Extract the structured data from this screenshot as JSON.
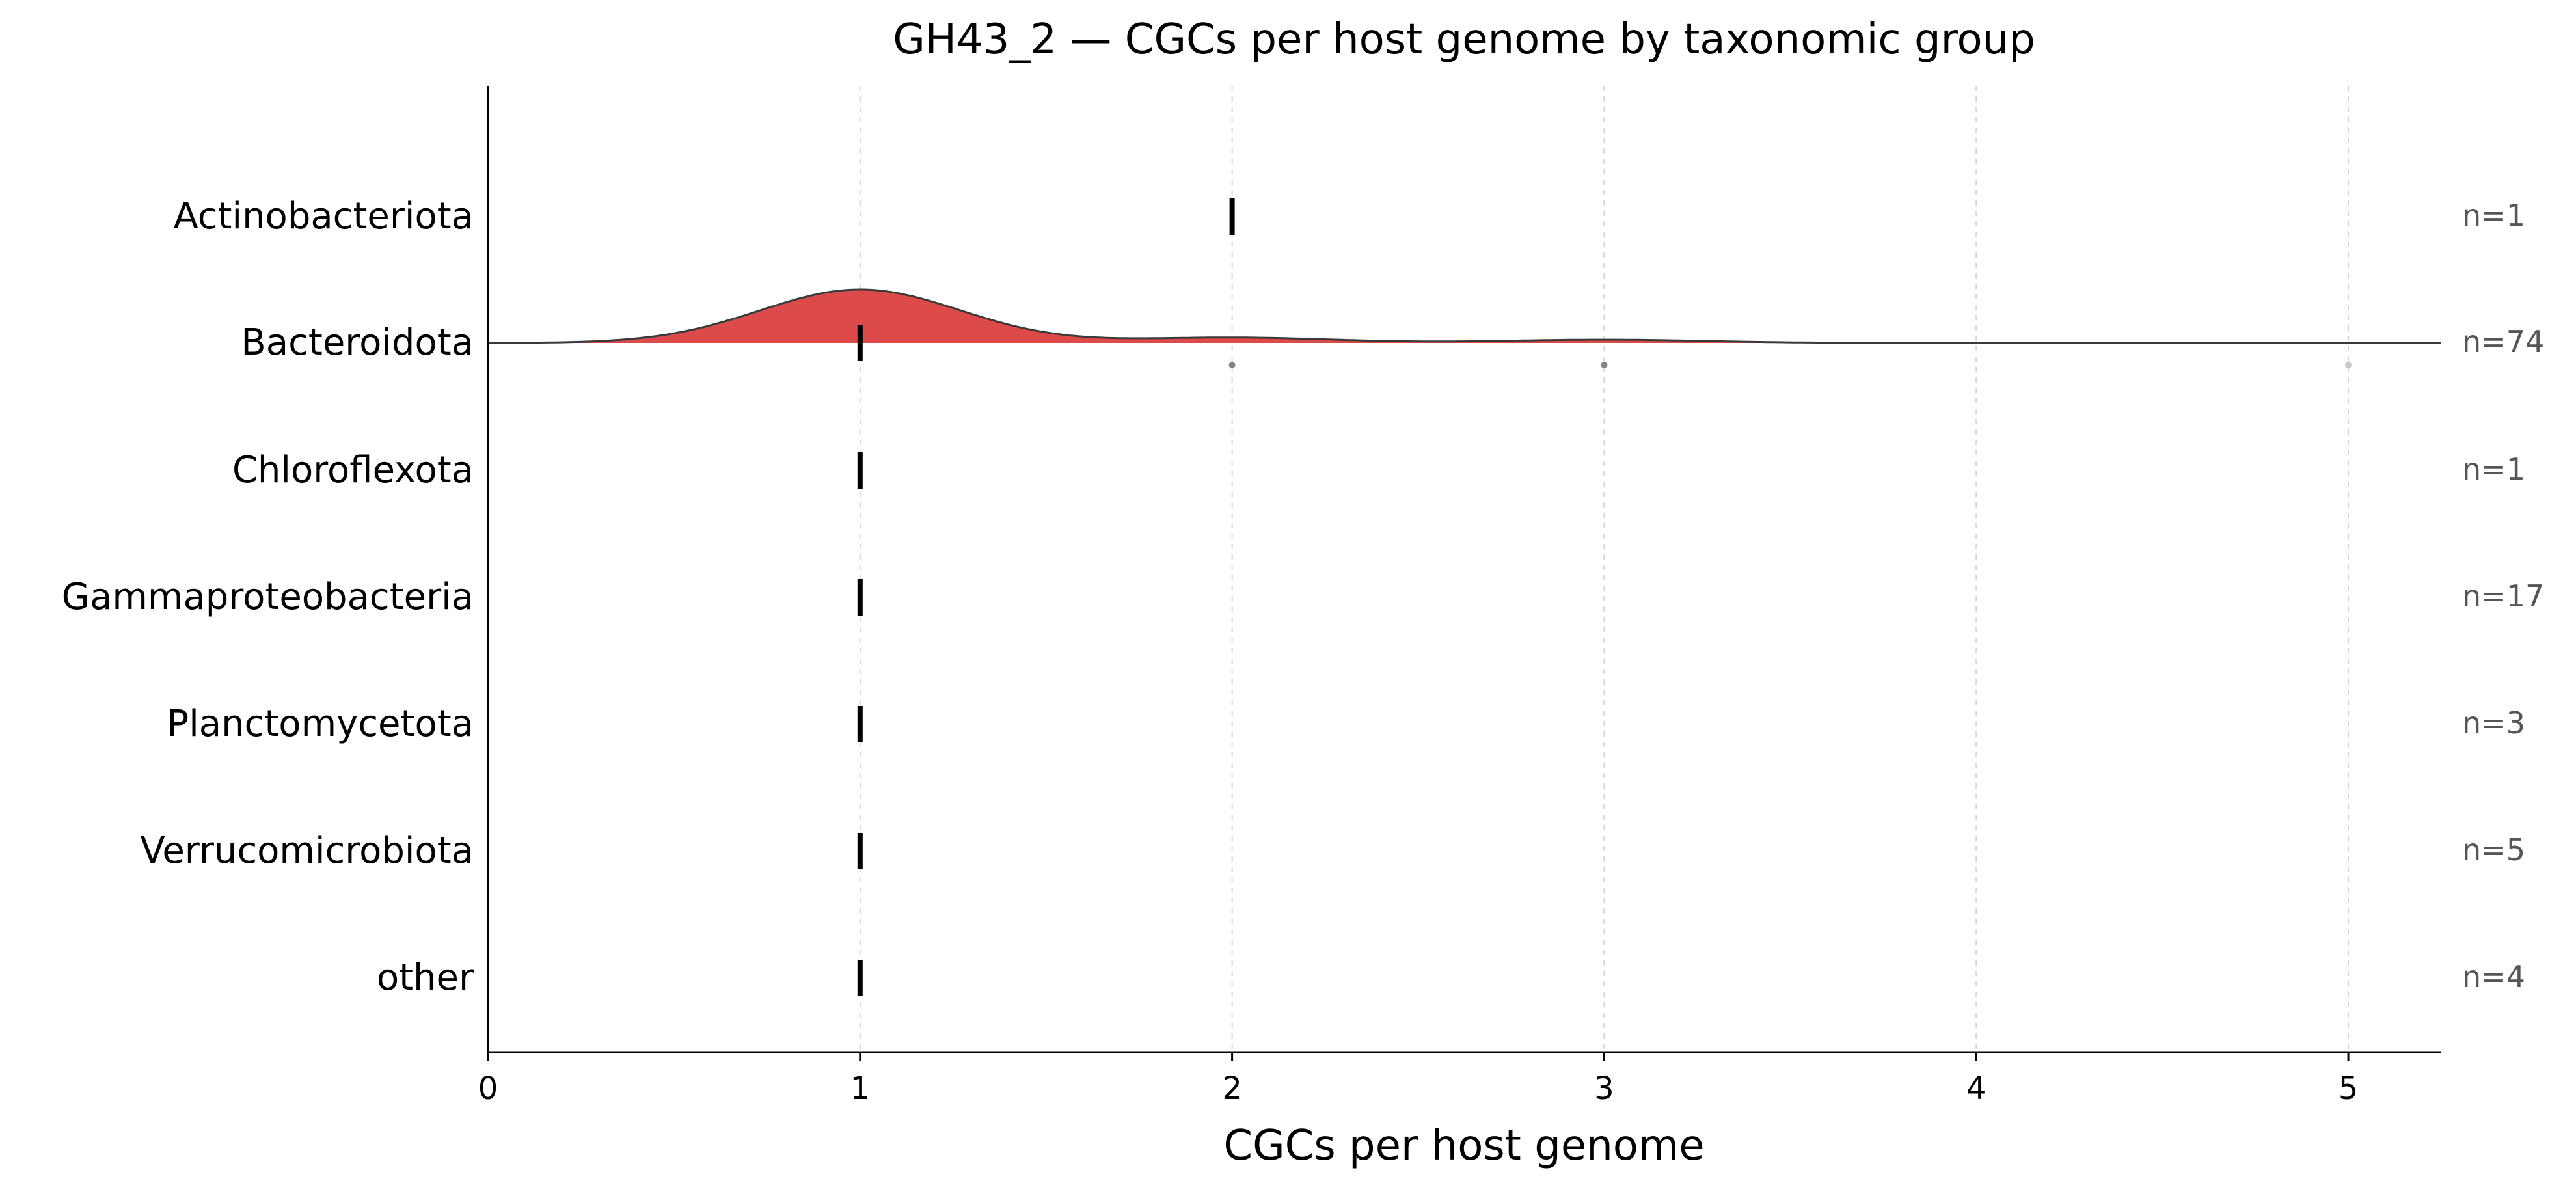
{
  "chart_data": {
    "type": "ridgeline",
    "title": "GH43_2 — CGCs per host genome by taxonomic group",
    "xlabel": "CGCs per host genome",
    "ylabel": "",
    "xlim": [
      0,
      5.25
    ],
    "xticks": [
      0,
      1,
      2,
      3,
      4,
      5
    ],
    "grid": "vertical dashed at x ticks",
    "categories": [
      "Actinobacteriota",
      "Bacteroidota",
      "Chloroflexota",
      "Gammaproteobacteria",
      "Planctomycetota",
      "Verrucomicrobiota",
      "other"
    ],
    "counts": [
      "n=1",
      "n=74",
      "n=1",
      "n=17",
      "n=3",
      "n=5",
      "n=4"
    ],
    "medians": [
      2,
      1,
      1,
      1,
      1,
      1,
      1
    ],
    "density": {
      "category": "Bacteroidota",
      "color": "#dc4a4a",
      "peaks": [
        {
          "x": 1.0,
          "height": 1.0,
          "sigma": 0.27
        },
        {
          "x": 2.0,
          "height": 0.1,
          "sigma": 0.27
        },
        {
          "x": 3.0,
          "height": 0.06,
          "sigma": 0.27
        }
      ]
    },
    "outliers": {
      "category": "Bacteroidota",
      "x": [
        2,
        3,
        5
      ]
    }
  }
}
